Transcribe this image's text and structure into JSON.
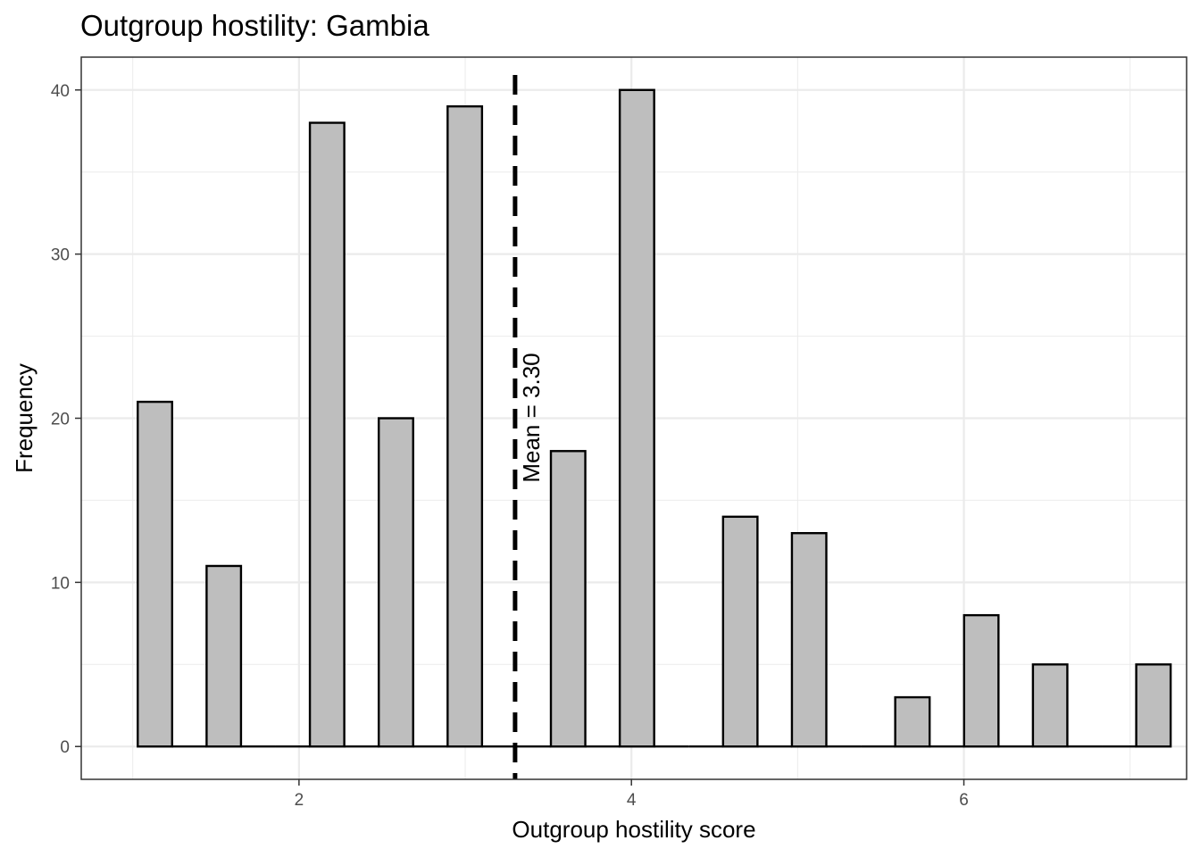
{
  "chart_data": {
    "type": "bar",
    "title": "Outgroup hostility: Gambia",
    "xlabel": "Outgroup hostility score",
    "ylabel": "Frequency",
    "xlim": [
      0.69,
      7.34
    ],
    "ylim": [
      -2.0,
      42.0
    ],
    "x_ticks": [
      2,
      4,
      6
    ],
    "x_tick_labels": [
      "2",
      "4",
      "6"
    ],
    "y_ticks": [
      0,
      10,
      20,
      30,
      40
    ],
    "y_tick_labels": [
      "0",
      "10",
      "20",
      "30",
      "40"
    ],
    "bin_width": 0.207,
    "bins": [
      {
        "x": 1.1333,
        "count": 21
      },
      {
        "x": 1.34,
        "count": 0
      },
      {
        "x": 1.5476,
        "count": 11
      },
      {
        "x": 1.7548,
        "count": 0
      },
      {
        "x": 1.9619,
        "count": 0
      },
      {
        "x": 2.169,
        "count": 38
      },
      {
        "x": 2.3762,
        "count": 0
      },
      {
        "x": 2.5833,
        "count": 20
      },
      {
        "x": 2.7905,
        "count": 0
      },
      {
        "x": 2.9976,
        "count": 39
      },
      {
        "x": 3.2048,
        "count": 0
      },
      {
        "x": 3.4119,
        "count": 0
      },
      {
        "x": 3.619,
        "count": 18
      },
      {
        "x": 3.8262,
        "count": 0
      },
      {
        "x": 4.0333,
        "count": 40
      },
      {
        "x": 4.2405,
        "count": 0
      },
      {
        "x": 4.4476,
        "count": 0
      },
      {
        "x": 4.6548,
        "count": 14
      },
      {
        "x": 4.8619,
        "count": 0
      },
      {
        "x": 5.069,
        "count": 13
      },
      {
        "x": 5.2762,
        "count": 0
      },
      {
        "x": 5.4833,
        "count": 0
      },
      {
        "x": 5.6905,
        "count": 3
      },
      {
        "x": 5.8976,
        "count": 0
      },
      {
        "x": 6.1048,
        "count": 8
      },
      {
        "x": 6.3119,
        "count": 0
      },
      {
        "x": 6.519,
        "count": 5
      },
      {
        "x": 6.7262,
        "count": 0
      },
      {
        "x": 6.9333,
        "count": 0
      },
      {
        "x": 7.1405,
        "count": 5
      }
    ],
    "mean_line": {
      "x": 3.3,
      "label": "Mean = 3.30"
    },
    "grid": true,
    "legend": "none",
    "colors": {
      "bar_fill": "#bebebe",
      "bar_stroke": "#000000",
      "grid": "#ebebeb",
      "panel_border": "#333333",
      "mean_line": "#000000"
    }
  }
}
